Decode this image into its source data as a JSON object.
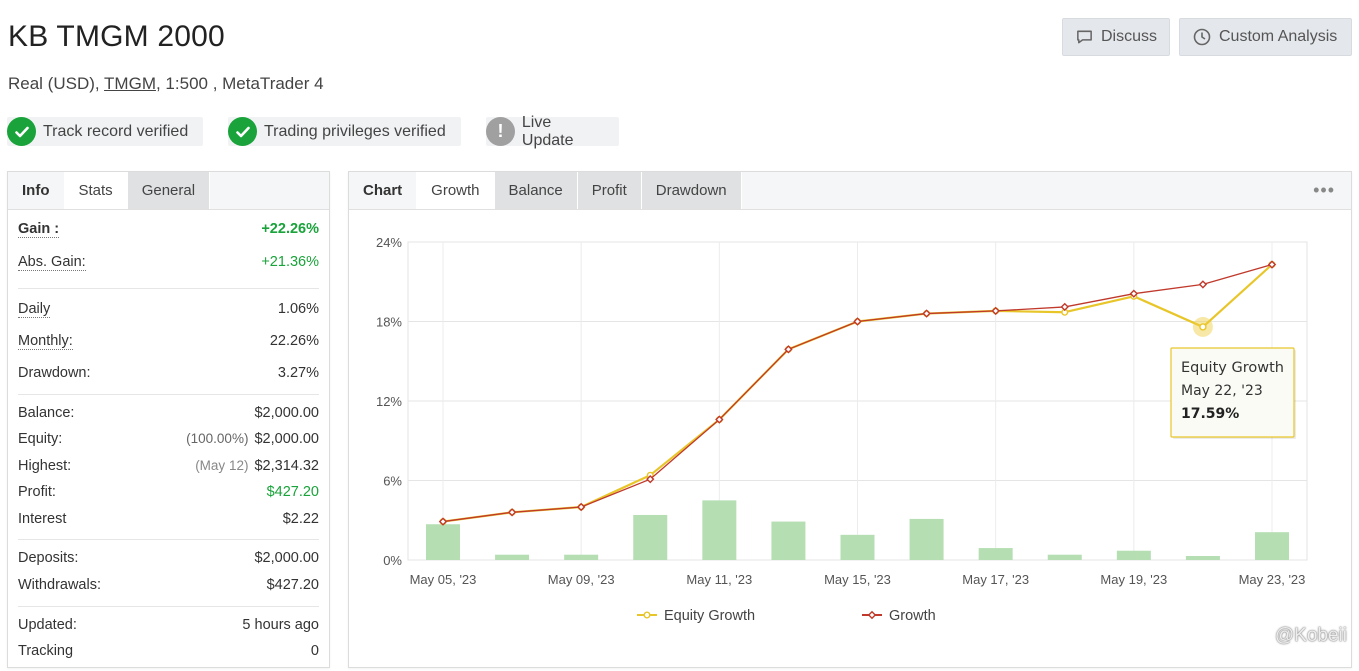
{
  "header": {
    "title": "KB TMGM 2000",
    "account_type": "Real (USD),",
    "broker": "TMGM",
    "leverage_platform": ", 1:500 , MetaTrader 4"
  },
  "actions": {
    "discuss": "Discuss",
    "custom_analysis": "Custom Analysis"
  },
  "badges": [
    {
      "label": "Track record verified",
      "icon": "check-icon"
    },
    {
      "label": "Trading privileges verified",
      "icon": "check-icon"
    },
    {
      "label": "Live Update",
      "icon": "exclamation-icon"
    }
  ],
  "left_tabs": {
    "info": "Info",
    "stats": "Stats",
    "general": "General"
  },
  "stats": {
    "gain": {
      "label": "Gain :",
      "value": "+22.26%"
    },
    "abs_gain": {
      "label": "Abs. Gain:",
      "value": "+21.36%"
    },
    "daily": {
      "label": "Daily",
      "value": "1.06%"
    },
    "monthly": {
      "label": "Monthly:",
      "value": "22.26%"
    },
    "drawdown": {
      "label": "Drawdown:",
      "value": "3.27%"
    },
    "balance": {
      "label": "Balance:",
      "value": "$2,000.00"
    },
    "equity": {
      "label": "Equity:",
      "note": "(100.00%)",
      "value": "$2,000.00"
    },
    "highest": {
      "label": "Highest:",
      "note": "(May 12)",
      "value": "$2,314.32"
    },
    "profit": {
      "label": "Profit:",
      "value": "$427.20"
    },
    "interest": {
      "label": "Interest",
      "value": "$2.22"
    },
    "deposits": {
      "label": "Deposits:",
      "value": "$2,000.00"
    },
    "withdrawals": {
      "label": "Withdrawals:",
      "value": "$427.20"
    },
    "updated": {
      "label": "Updated:",
      "value": "5 hours ago"
    },
    "tracking": {
      "label": "Tracking",
      "value": "0"
    }
  },
  "chart_tabs": {
    "chart": "Chart",
    "growth": "Growth",
    "balance": "Balance",
    "profit": "Profit",
    "drawdown": "Drawdown"
  },
  "more_icon": "•••",
  "tooltip": {
    "title": "Equity Growth",
    "date": "May 22, '23",
    "value": "17.59%"
  },
  "watermark": "@Kobeii",
  "chart_data": {
    "type": "line",
    "title": "",
    "y_ticks": [
      "24%",
      "18%",
      "12%",
      "6%",
      "0%"
    ],
    "ylim": [
      0,
      24
    ],
    "x_tick_labels": [
      "May 05, '23",
      "May 09, '23",
      "May 11, '23",
      "May 15, '23",
      "May 17, '23",
      "May 19, '23",
      "May 23, '23"
    ],
    "x_tick_positions": [
      0,
      2,
      4,
      6,
      8,
      10,
      12
    ],
    "x_index": [
      0,
      1,
      2,
      3,
      4,
      5,
      6,
      7,
      8,
      9,
      10,
      11,
      12
    ],
    "grid": true,
    "legend_position": "bottom-center",
    "series": [
      {
        "name": "Equity Growth",
        "color": "#e8c62a",
        "values": [
          2.9,
          3.6,
          4.0,
          6.4,
          10.6,
          15.9,
          18.0,
          18.6,
          18.8,
          18.7,
          19.9,
          17.59,
          22.3
        ]
      },
      {
        "name": "Growth",
        "color": "#c0392b",
        "values": [
          2.9,
          3.6,
          4.0,
          6.1,
          10.6,
          15.9,
          18.0,
          18.6,
          18.8,
          19.1,
          20.1,
          20.8,
          22.3
        ]
      }
    ],
    "bars": {
      "color": "#b5deb3",
      "values": [
        2.7,
        0.4,
        0.4,
        3.4,
        4.5,
        2.9,
        1.9,
        3.1,
        0.9,
        0.4,
        0.7,
        0.3,
        2.1
      ]
    }
  }
}
